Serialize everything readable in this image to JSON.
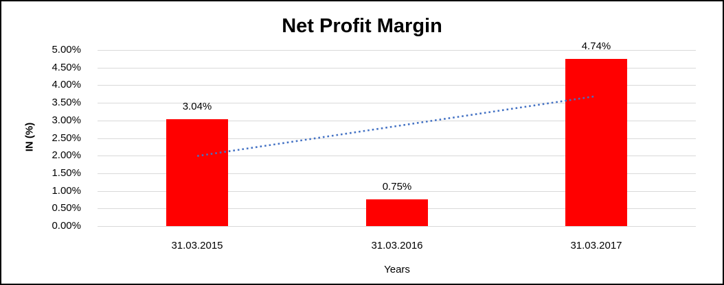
{
  "chart_data": {
    "type": "bar",
    "title": "Net Profit Margin",
    "xlabel": "Years",
    "ylabel": "IN (%)",
    "categories": [
      "31.03.2015",
      "31.03.2016",
      "31.03.2017"
    ],
    "values": [
      3.04,
      0.75,
      4.74
    ],
    "data_labels": [
      "3.04%",
      "0.75%",
      "4.74%"
    ],
    "ylim": [
      0,
      5
    ],
    "yticks": [
      {
        "value": 0.0,
        "label": "0.00%"
      },
      {
        "value": 0.5,
        "label": "0.50%"
      },
      {
        "value": 1.0,
        "label": "1.00%"
      },
      {
        "value": 1.5,
        "label": "1.50%"
      },
      {
        "value": 2.0,
        "label": "2.00%"
      },
      {
        "value": 2.5,
        "label": "2.50%"
      },
      {
        "value": 3.0,
        "label": "3.00%"
      },
      {
        "value": 3.5,
        "label": "3.50%"
      },
      {
        "value": 4.0,
        "label": "4.00%"
      },
      {
        "value": 4.5,
        "label": "4.50%"
      },
      {
        "value": 5.0,
        "label": "5.00%"
      }
    ],
    "grid": true,
    "legend": "none",
    "bar_color": "#FF0000",
    "gridline_color": "#D9D9D9",
    "frame_border_color": "#000000",
    "trendline": {
      "type": "linear",
      "style": "dotted",
      "color": "#4472C4",
      "start_value": 1.99,
      "end_value": 3.69
    }
  }
}
